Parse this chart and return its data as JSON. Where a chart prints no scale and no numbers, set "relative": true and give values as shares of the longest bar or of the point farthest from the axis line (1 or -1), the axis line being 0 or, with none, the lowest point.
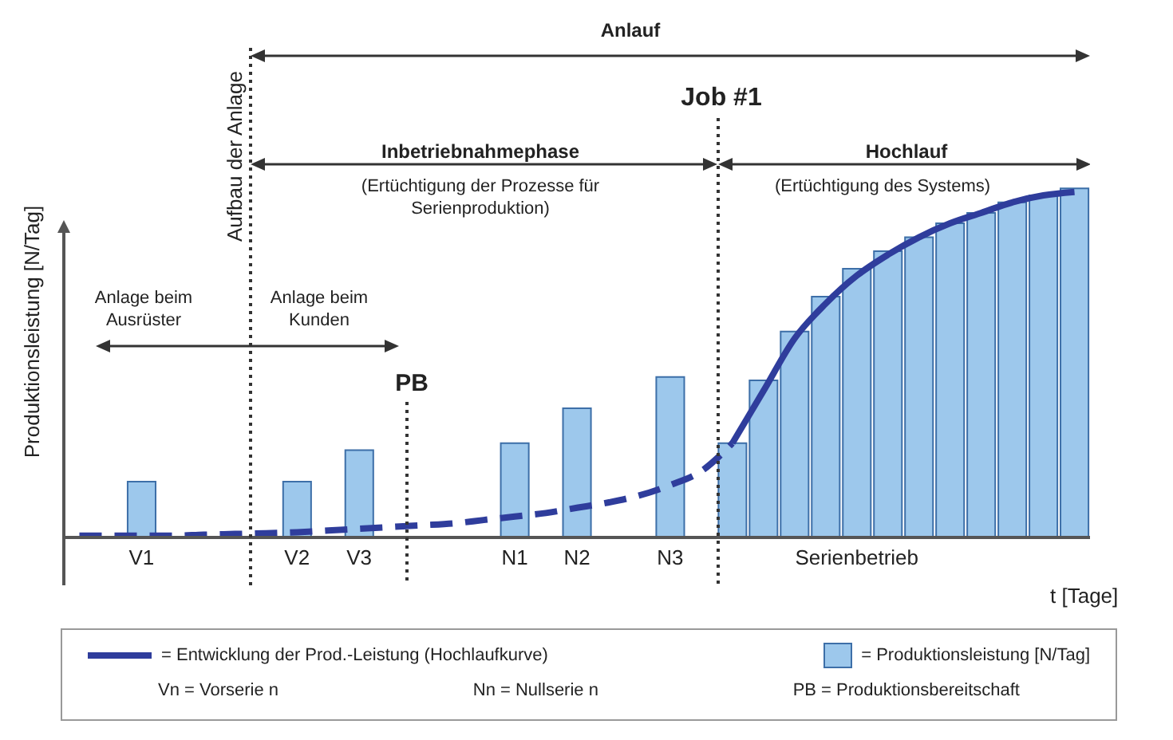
{
  "chart_data": {
    "type": "bar",
    "relative": true,
    "xlabel": "t [Tage]",
    "ylabel": "Produktionsleistung [N/Tag]",
    "categories": [
      null,
      null,
      "V1",
      null,
      null,
      null,
      null,
      "V2",
      null,
      "V3",
      null,
      null,
      null,
      null,
      "N1",
      null,
      "N2",
      null,
      null,
      "N3",
      null,
      null,
      null,
      null,
      null,
      "Serienbetrieb",
      null,
      null,
      null,
      null,
      null,
      null,
      null
    ],
    "series": [
      {
        "type": "line",
        "name": "= Entwicklung der Prod.-Leistung (Hochlaufkurve)",
        "color": "#2f3d9c",
        "line_style": "solid",
        "values": [
          null,
          null,
          null,
          null,
          null,
          null,
          null,
          null,
          null,
          null,
          null,
          null,
          null,
          null,
          null,
          null,
          null,
          null,
          null,
          null,
          null,
          0.27,
          0.42,
          0.57,
          0.67,
          0.75,
          0.81,
          0.86,
          0.9,
          0.93,
          0.96,
          0.98,
          0.99
        ]
      },
      {
        "type": "line",
        "color": "#2f3d9c",
        "line_style": "dashed",
        "values": [
          0.005,
          0.005,
          0.005,
          0.005,
          0.008,
          0.01,
          0.012,
          0.015,
          0.02,
          0.025,
          0.03,
          0.035,
          0.04,
          0.05,
          0.06,
          0.07,
          0.085,
          0.1,
          0.12,
          0.15,
          0.19,
          0.27,
          null,
          null,
          null,
          null,
          null,
          null,
          null,
          null,
          null,
          null,
          null
        ]
      },
      {
        "name": "= Produktionsleistung [N/Tag]",
        "color": "#9dc8ec",
        "values": [
          null,
          null,
          0.16,
          null,
          null,
          null,
          null,
          0.16,
          null,
          0.25,
          null,
          null,
          null,
          null,
          0.27,
          null,
          0.37,
          null,
          null,
          0.46,
          null,
          0.27,
          0.45,
          0.59,
          0.69,
          0.77,
          0.82,
          0.86,
          0.9,
          0.93,
          0.96,
          0.98,
          1
        ]
      }
    ],
    "annotations": [
      "Anlauf",
      "Job #1",
      "Aufbau der Anlage",
      "Inbetriebnahmephase",
      "(Ertüchtigung der Prozesse für Serienproduktion)",
      "Hochlauf",
      "(Ertüchtigung des Systems)",
      "Anlage beim Ausrüster",
      "Anlage beim Kunden",
      "PB",
      "Vn = Vorserie n",
      "Nn = Nullserie n",
      "PB = Produktionsbereitschaft"
    ],
    "legend": "bottom",
    "grid": false
  }
}
